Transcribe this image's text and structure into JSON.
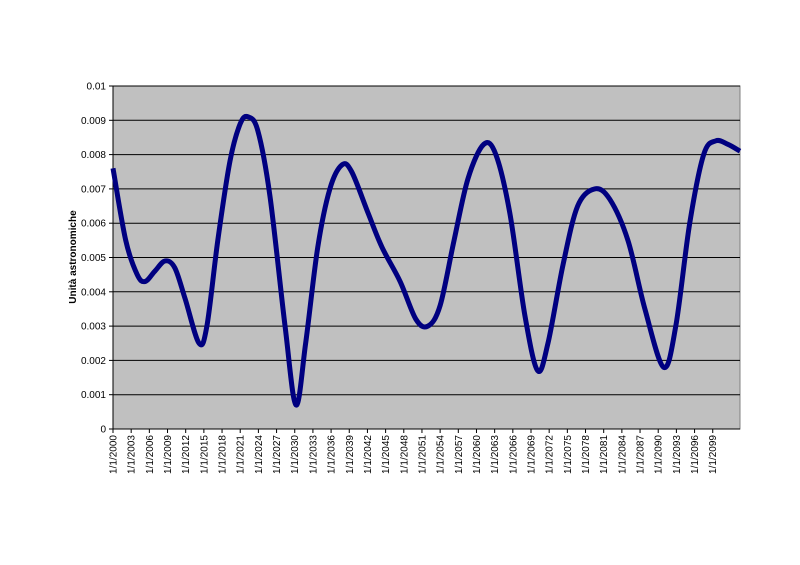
{
  "chart_data": {
    "type": "line",
    "y_label": "Unità astronomiche",
    "x": [
      2000,
      2002.1,
      2004,
      2005.3,
      2006.9,
      2008.6,
      2010.2,
      2011.9,
      2014.2,
      2015.5,
      2017.3,
      2019.3,
      2021,
      2022.3,
      2023.9,
      2025.9,
      2028.4,
      2030.2,
      2031.8,
      2033.8,
      2035.8,
      2037.8,
      2039.4,
      2042.1,
      2044.4,
      2047.4,
      2050,
      2052,
      2054,
      2056.3,
      2058.6,
      2061.2,
      2063.2,
      2065.5,
      2068,
      2070.1,
      2071.8,
      2074.3,
      2076.7,
      2079.5,
      2082,
      2085,
      2087.8,
      2090.9,
      2092.9,
      2095.2,
      2097.5,
      2099.5,
      2101.5,
      2103.5
    ],
    "series": [
      {
        "color": "#000080",
        "values": [
          0.0076,
          0.0055,
          0.0045,
          0.0043,
          0.0046,
          0.0049,
          0.0047,
          0.0038,
          0.0025,
          0.003,
          0.0055,
          0.0078,
          0.0089,
          0.0091,
          0.0087,
          0.0068,
          0.003,
          0.0007,
          0.0025,
          0.0053,
          0.007,
          0.0077,
          0.0075,
          0.0063,
          0.0053,
          0.0043,
          0.0032,
          0.003,
          0.0036,
          0.0055,
          0.0073,
          0.0083,
          0.008,
          0.0063,
          0.0033,
          0.0017,
          0.0025,
          0.0048,
          0.0065,
          0.007,
          0.0067,
          0.0055,
          0.0035,
          0.0018,
          0.003,
          0.006,
          0.008,
          0.0084,
          0.0083,
          0.0081
        ]
      }
    ],
    "xlim": [
      2000,
      2103.5
    ],
    "xticks": [
      {
        "value": 2000,
        "label": "1/1/2000"
      },
      {
        "value": 2003,
        "label": "1/1/2003"
      },
      {
        "value": 2006,
        "label": "1/1/2006"
      },
      {
        "value": 2009,
        "label": "1/1/2009"
      },
      {
        "value": 2012,
        "label": "1/1/2012"
      },
      {
        "value": 2015,
        "label": "1/1/2015"
      },
      {
        "value": 2018,
        "label": "1/1/2018"
      },
      {
        "value": 2021,
        "label": "1/1/2021"
      },
      {
        "value": 2024,
        "label": "1/1/2024"
      },
      {
        "value": 2027,
        "label": "1/1/2027"
      },
      {
        "value": 2030,
        "label": "1/1/2030"
      },
      {
        "value": 2033,
        "label": "1/1/2033"
      },
      {
        "value": 2036,
        "label": "1/1/2036"
      },
      {
        "value": 2039,
        "label": "1/1/2039"
      },
      {
        "value": 2042,
        "label": "1/1/2042"
      },
      {
        "value": 2045,
        "label": "1/1/2045"
      },
      {
        "value": 2048,
        "label": "1/1/2048"
      },
      {
        "value": 2051,
        "label": "1/1/2051"
      },
      {
        "value": 2054,
        "label": "1/1/2054"
      },
      {
        "value": 2057,
        "label": "1/1/2057"
      },
      {
        "value": 2060,
        "label": "1/1/2060"
      },
      {
        "value": 2063,
        "label": "1/1/2063"
      },
      {
        "value": 2066,
        "label": "1/1/2066"
      },
      {
        "value": 2069,
        "label": "1/1/2069"
      },
      {
        "value": 2072,
        "label": "1/1/2072"
      },
      {
        "value": 2075,
        "label": "1/1/2075"
      },
      {
        "value": 2078,
        "label": "1/1/2078"
      },
      {
        "value": 2081,
        "label": "1/1/2081"
      },
      {
        "value": 2084,
        "label": "1/1/2084"
      },
      {
        "value": 2087,
        "label": "1/1/2087"
      },
      {
        "value": 2090,
        "label": "1/1/2090"
      },
      {
        "value": 2093,
        "label": "1/1/2093"
      },
      {
        "value": 2096,
        "label": "1/1/2096"
      },
      {
        "value": 2099,
        "label": "1/1/2099"
      }
    ],
    "ylim": [
      0,
      0.01
    ],
    "yticks": [
      0,
      0.001,
      0.002,
      0.003,
      0.004,
      0.005,
      0.006,
      0.007,
      0.008,
      0.009,
      0.01
    ],
    "grid": true,
    "plot_background": "#c0c0c0"
  }
}
